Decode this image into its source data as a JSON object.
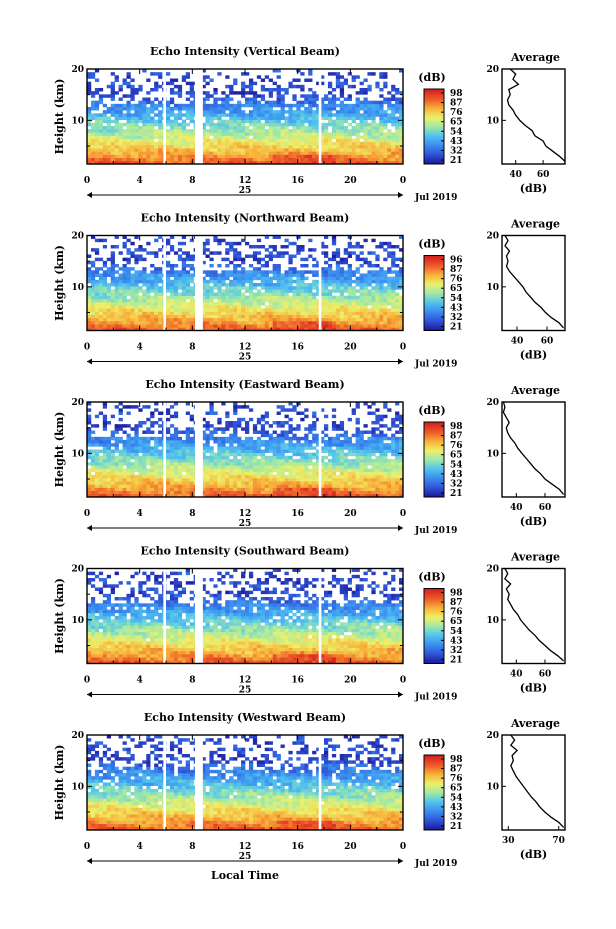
{
  "figure": {
    "x_axis_label": "Local Time",
    "date_label": "Jul 2019",
    "day_label": "25",
    "unit_label": "(dB)",
    "average_title": "Average",
    "colormap": [
      "#1c1c9c",
      "#2f55d8",
      "#3a8ef0",
      "#52c3ee",
      "#9ee8a8",
      "#eef06a",
      "#f7b23a",
      "#ef5b2a",
      "#d42420"
    ]
  },
  "chart_data": [
    {
      "type": "heatmap",
      "title": "Echo Intensity (Vertical Beam)",
      "ylabel": "Height (km)",
      "xlabel": "Local Time",
      "x_ticks": [
        "0",
        "4",
        "8",
        "12",
        "16",
        "20",
        "0"
      ],
      "y_ticks": [
        "10",
        "20"
      ],
      "xlim": [
        0,
        24
      ],
      "ylim": [
        1.5,
        20
      ],
      "data_gaps_hours": [
        [
          5.8,
          6.0
        ],
        [
          8.2,
          8.8
        ],
        [
          17.6,
          17.8
        ]
      ],
      "colorbar": {
        "label": "(dB)",
        "ticks": [
          "98",
          "87",
          "76",
          "65",
          "54",
          "43",
          "32",
          "21"
        ]
      },
      "average_profile": {
        "title": "Average",
        "xlabel": "(dB)",
        "x_ticks": [
          "40",
          "60"
        ],
        "y_ticks": [
          "10",
          "20"
        ],
        "xlim": [
          30,
          76
        ],
        "heights_km": [
          2,
          3,
          4,
          5,
          6,
          7,
          8,
          9,
          10,
          11,
          12,
          13,
          14,
          15,
          16,
          17,
          18,
          19,
          20
        ],
        "values_db": [
          76,
          72,
          67,
          62,
          60,
          54,
          52,
          47,
          43,
          40,
          38,
          35,
          34,
          36,
          35,
          42,
          38,
          40,
          36
        ]
      }
    },
    {
      "type": "heatmap",
      "title": "Echo Intensity (Northward Beam)",
      "ylabel": "Height (km)",
      "xlabel": "Local Time",
      "x_ticks": [
        "0",
        "4",
        "8",
        "12",
        "16",
        "20",
        "0"
      ],
      "y_ticks": [
        "10",
        "20"
      ],
      "xlim": [
        0,
        24
      ],
      "ylim": [
        1.5,
        20
      ],
      "data_gaps_hours": [
        [
          5.8,
          6.0
        ],
        [
          8.2,
          8.8
        ],
        [
          17.6,
          17.8
        ]
      ],
      "colorbar": {
        "label": "(dB)",
        "ticks": [
          "96",
          "87",
          "76",
          "65",
          "54",
          "43",
          "32",
          "21"
        ]
      },
      "average_profile": {
        "title": "Average",
        "xlabel": "(dB)",
        "x_ticks": [
          "40",
          "60"
        ],
        "y_ticks": [
          "10",
          "20"
        ],
        "xlim": [
          30,
          72
        ],
        "heights_km": [
          2,
          3,
          4,
          5,
          6,
          7,
          8,
          9,
          10,
          11,
          12,
          13,
          14,
          15,
          16,
          17,
          18,
          19,
          20
        ],
        "values_db": [
          71,
          68,
          63,
          59,
          56,
          52,
          49,
          46,
          44,
          41,
          38,
          35,
          33,
          34,
          33,
          35,
          32,
          34,
          32
        ]
      }
    },
    {
      "type": "heatmap",
      "title": "Echo Intensity (Eastward Beam)",
      "ylabel": "Height (km)",
      "xlabel": "Local Time",
      "x_ticks": [
        "0",
        "4",
        "8",
        "12",
        "16",
        "20",
        "0"
      ],
      "y_ticks": [
        "10",
        "20"
      ],
      "xlim": [
        0,
        24
      ],
      "ylim": [
        1.5,
        20
      ],
      "data_gaps_hours": [
        [
          5.8,
          6.0
        ],
        [
          8.2,
          8.8
        ],
        [
          17.6,
          17.8
        ]
      ],
      "colorbar": {
        "label": "(dB)",
        "ticks": [
          "98",
          "87",
          "76",
          "65",
          "54",
          "43",
          "32",
          "21"
        ]
      },
      "average_profile": {
        "title": "Average",
        "xlabel": "(dB)",
        "x_ticks": [
          "40",
          "60"
        ],
        "y_ticks": [
          "10",
          "20"
        ],
        "xlim": [
          30,
          74
        ],
        "heights_km": [
          2,
          3,
          4,
          5,
          6,
          7,
          8,
          9,
          10,
          11,
          12,
          13,
          14,
          15,
          16,
          17,
          18,
          19,
          20
        ],
        "values_db": [
          73,
          70,
          65,
          60,
          57,
          53,
          50,
          47,
          44,
          41,
          39,
          36,
          34,
          33,
          35,
          33,
          31,
          32,
          31
        ]
      }
    },
    {
      "type": "heatmap",
      "title": "Echo Intensity (Southward Beam)",
      "ylabel": "Height (km)",
      "xlabel": "Local Time",
      "x_ticks": [
        "0",
        "4",
        "8",
        "12",
        "16",
        "20",
        "0"
      ],
      "y_ticks": [
        "10",
        "20"
      ],
      "xlim": [
        0,
        24
      ],
      "ylim": [
        1.5,
        20
      ],
      "data_gaps_hours": [
        [
          5.8,
          6.0
        ],
        [
          8.2,
          8.8
        ],
        [
          17.6,
          17.8
        ]
      ],
      "colorbar": {
        "label": "(dB)",
        "ticks": [
          "98",
          "87",
          "76",
          "65",
          "54",
          "43",
          "32",
          "21"
        ]
      },
      "average_profile": {
        "title": "Average",
        "xlabel": "(dB)",
        "x_ticks": [
          "40",
          "60"
        ],
        "y_ticks": [
          "10",
          "20"
        ],
        "xlim": [
          30,
          74
        ],
        "heights_km": [
          2,
          3,
          4,
          5,
          6,
          7,
          8,
          9,
          10,
          11,
          12,
          13,
          14,
          15,
          16,
          17,
          18,
          19,
          20
        ],
        "values_db": [
          73,
          69,
          64,
          60,
          56,
          53,
          49,
          46,
          43,
          41,
          38,
          36,
          34,
          35,
          33,
          36,
          32,
          34,
          32
        ]
      }
    },
    {
      "type": "heatmap",
      "title": "Echo Intensity (Westward Beam)",
      "ylabel": "Height (km)",
      "xlabel": "Local Time",
      "x_ticks": [
        "0",
        "4",
        "8",
        "12",
        "16",
        "20",
        "0"
      ],
      "y_ticks": [
        "10",
        "20"
      ],
      "xlim": [
        0,
        24
      ],
      "ylim": [
        1.5,
        20
      ],
      "data_gaps_hours": [
        [
          5.8,
          6.0
        ],
        [
          8.2,
          8.8
        ],
        [
          17.6,
          17.8
        ]
      ],
      "colorbar": {
        "label": "(dB)",
        "ticks": [
          "98",
          "87",
          "76",
          "65",
          "54",
          "43",
          "32",
          "21"
        ]
      },
      "average_profile": {
        "title": "Average",
        "xlabel": "(dB)",
        "x_ticks": [
          "30",
          "70"
        ],
        "y_ticks": [
          "10",
          "20"
        ],
        "xlim": [
          25,
          75
        ],
        "heights_km": [
          2,
          3,
          4,
          5,
          6,
          7,
          8,
          9,
          10,
          11,
          12,
          13,
          14,
          15,
          16,
          17,
          18,
          19,
          20
        ],
        "values_db": [
          74,
          70,
          64,
          59,
          55,
          52,
          48,
          45,
          42,
          39,
          36,
          34,
          32,
          34,
          33,
          37,
          32,
          35,
          32
        ]
      }
    }
  ]
}
